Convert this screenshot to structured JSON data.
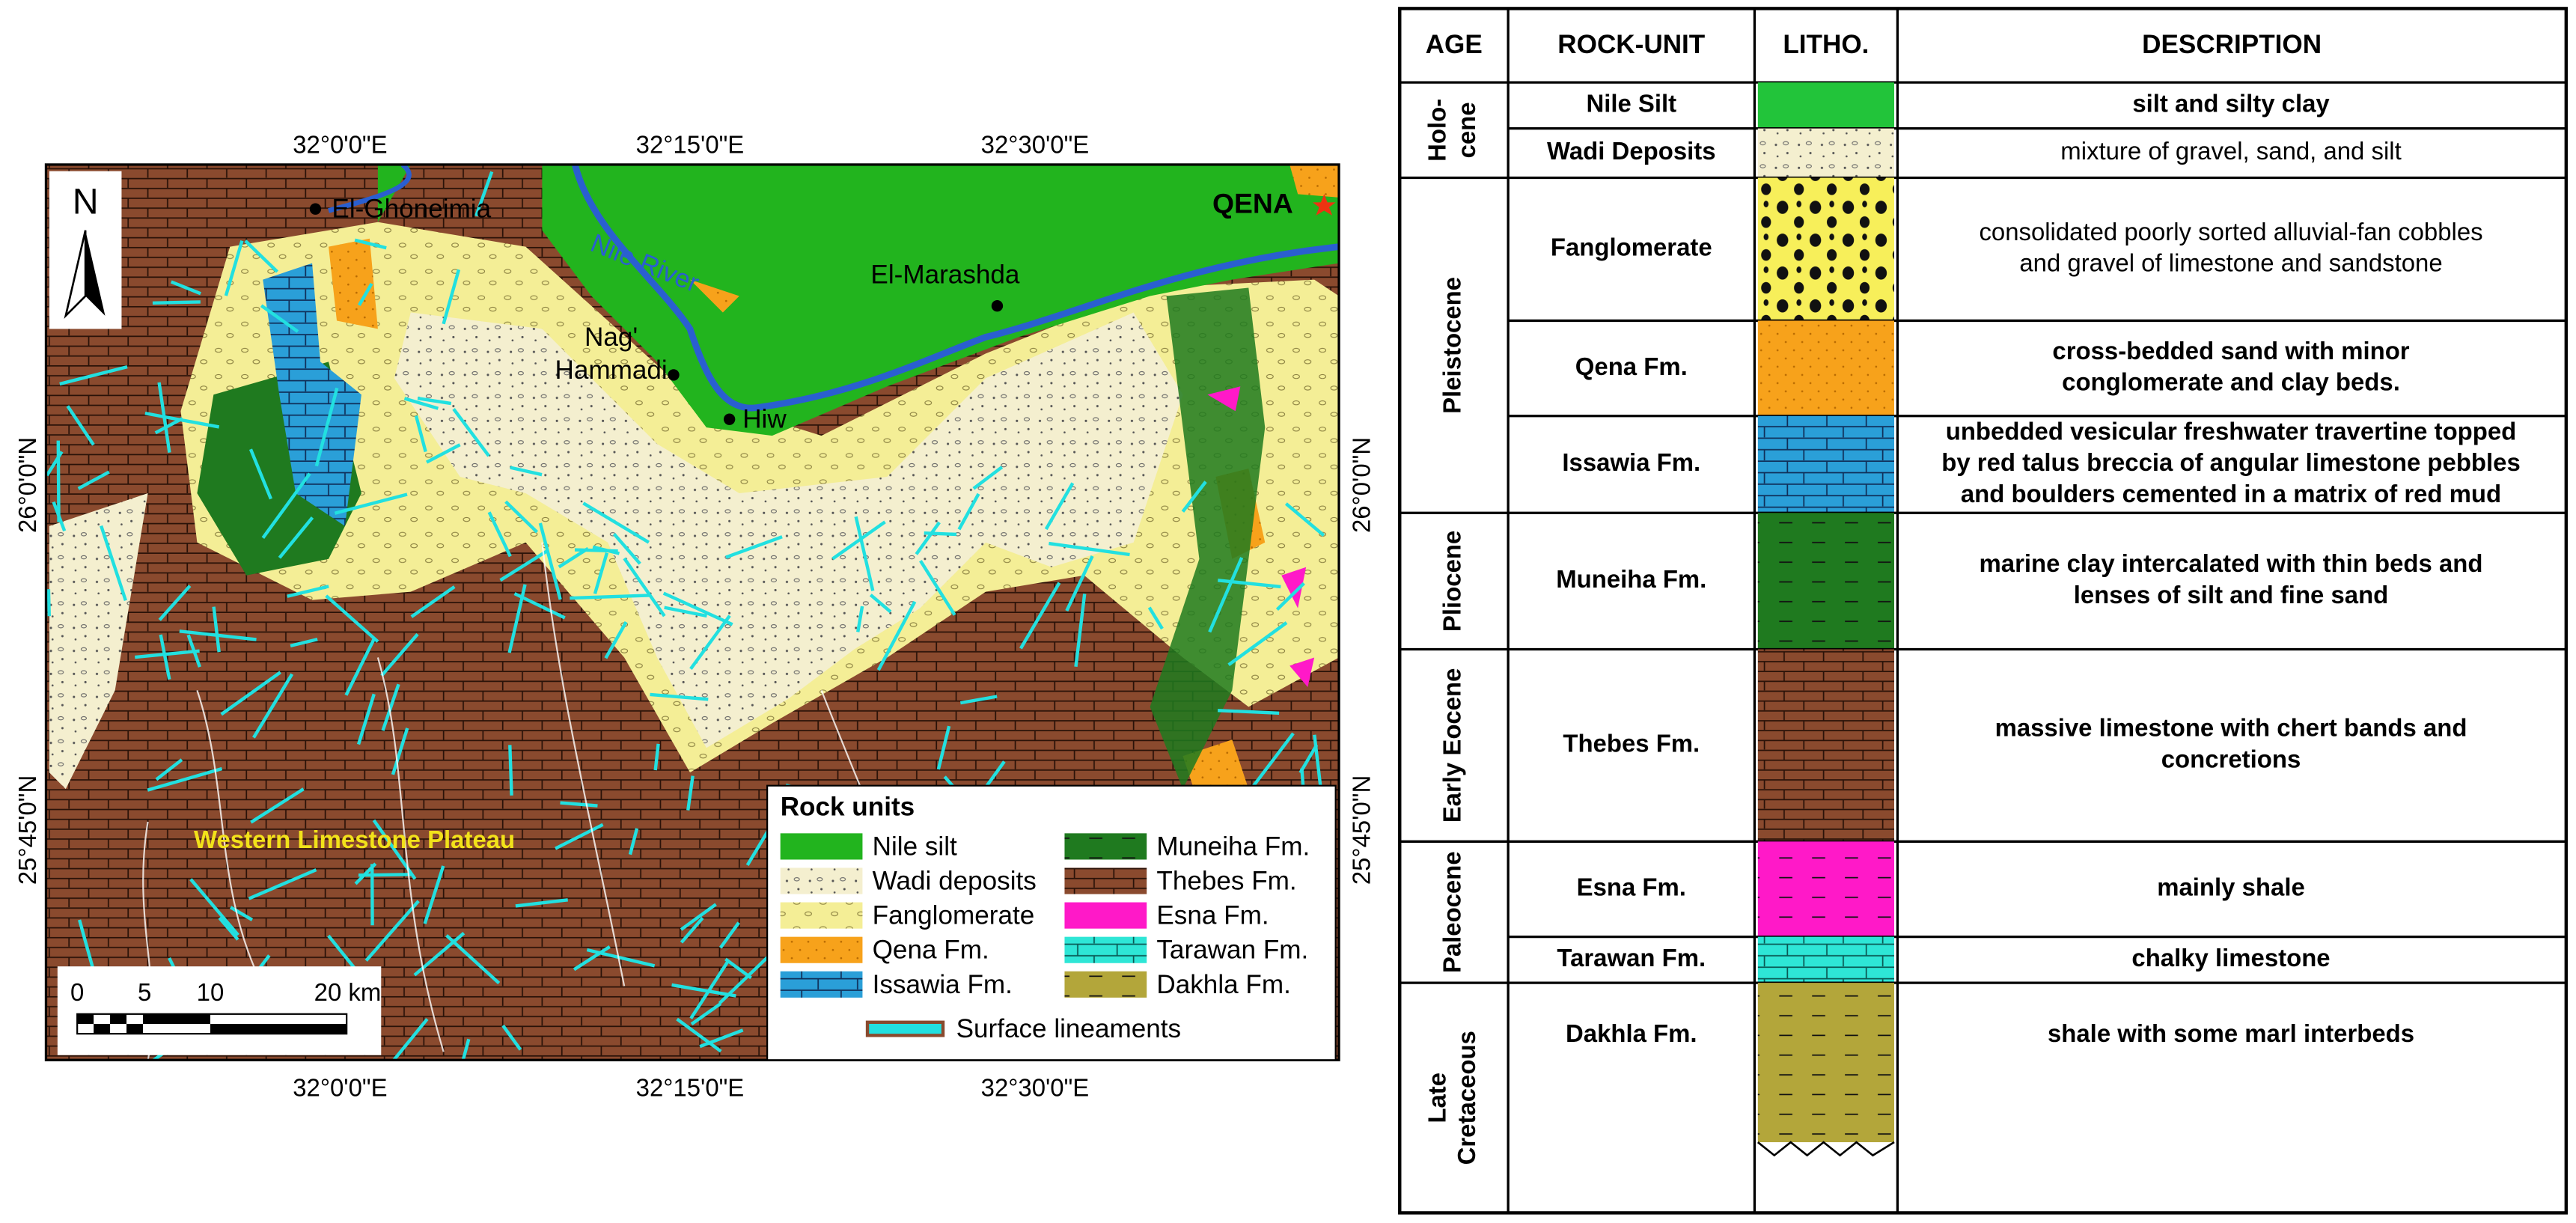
{
  "map": {
    "north": "N",
    "top_ticks": [
      "32°0'0\"E",
      "32°15'0\"E",
      "32°30'0\"E"
    ],
    "bottom_ticks": [
      "32°0'0\"E",
      "32°15'0\"E",
      "32°30'0\"E"
    ],
    "left_ticks": [
      "26°0'0\"N",
      "25°45'0\"N"
    ],
    "right_ticks": [
      "26°0'0\"N",
      "25°45'0\"N"
    ],
    "places": [
      {
        "lines": [
          "El-Ghoneimia"
        ]
      },
      {
        "lines": [
          "Nag'",
          "Hammadi"
        ]
      },
      {
        "lines": [
          "Hiw"
        ]
      },
      {
        "lines": [
          "El-Marashda"
        ]
      }
    ],
    "city": "QENA",
    "river": "Nile River",
    "region": "Western Limestone Plateau",
    "scale": [
      "0",
      "5",
      "10",
      "20 km"
    ],
    "legend": {
      "title": "Rock units",
      "items": [
        "Nile silt",
        "Wadi deposits",
        "Fanglomerate",
        "Qena Fm.",
        "Issawia Fm.",
        "Muneiha Fm.",
        "Thebes Fm.",
        "Esna Fm.",
        "Tarawan Fm.",
        "Dakhla Fm."
      ],
      "lineament": "Surface lineaments"
    }
  },
  "table": {
    "headers": [
      "AGE",
      "ROCK-UNIT",
      "LITHO.",
      "DESCRIPTION"
    ],
    "ages": [
      {
        "lines": [
          "Holo-",
          "cene"
        ]
      },
      {
        "lines": [
          "Pleistocene"
        ]
      },
      {
        "lines": [
          "Pliocene"
        ]
      },
      {
        "lines": [
          "Early Eocene"
        ]
      },
      {
        "lines": [
          "Paleocene"
        ]
      },
      {
        "lines": [
          "Late",
          "Cretaceous"
        ]
      }
    ],
    "rows": [
      {
        "unit": "Nile Silt",
        "description": [
          "silt and silty clay"
        ]
      },
      {
        "unit": "Wadi Deposits",
        "description": [
          "mixture of gravel, sand, and silt"
        ]
      },
      {
        "unit": "Fanglomerate",
        "description": [
          "consolidated poorly sorted alluvial-fan cobbles",
          "and gravel of limestone and sandstone"
        ]
      },
      {
        "unit": "Qena Fm.",
        "description": [
          "cross-bedded sand with minor",
          "conglomerate and clay beds."
        ]
      },
      {
        "unit": "Issawia Fm.",
        "description": [
          "unbedded vesicular freshwater travertine topped",
          "by red talus breccia of angular limestone pebbles",
          "and boulders cemented in a matrix of red mud"
        ]
      },
      {
        "unit": "Muneiha Fm.",
        "description": [
          "marine clay intercalated with thin beds and",
          "lenses of silt and fine sand"
        ]
      },
      {
        "unit": "Thebes Fm.",
        "description": [
          "massive limestone with chert bands and",
          "concretions"
        ]
      },
      {
        "unit": "Esna Fm.",
        "description": [
          "mainly shale"
        ]
      },
      {
        "unit": "Tarawan Fm.",
        "description": [
          "chalky limestone"
        ]
      },
      {
        "unit": "Dakhla Fm.",
        "description": [
          "shale with some marl interbeds"
        ]
      }
    ]
  }
}
